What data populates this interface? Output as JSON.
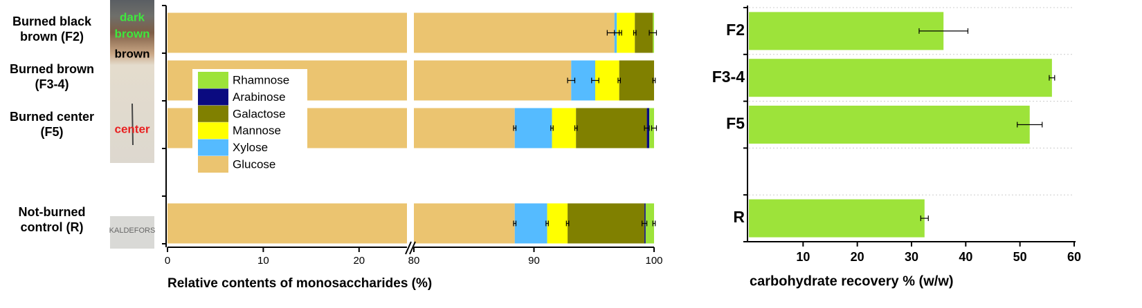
{
  "chart_data": [
    {
      "type": "stacked_bar",
      "orientation": "horizontal",
      "categories": [
        "Burned black brown (F2)",
        "Burned brown (F3-4)",
        "Burned center (F5)",
        null,
        "Not-burned control (R)"
      ],
      "series": [
        {
          "name": "Glucose",
          "color": "#ebc470",
          "values": [
            96.7,
            93.1,
            88.4,
            null,
            88.4
          ],
          "errors": [
            0.6,
            0.3,
            0.1,
            null,
            0.1
          ]
        },
        {
          "name": "Xylose",
          "color": "#55bbff",
          "values": [
            0.2,
            2.0,
            3.1,
            null,
            2.7
          ],
          "errors": [
            0.2,
            0.3,
            0.1,
            null,
            0.1
          ]
        },
        {
          "name": "Mannose",
          "color": "#ffff00",
          "values": [
            1.5,
            2.0,
            2.0,
            null,
            1.7
          ],
          "errors": [
            0.1,
            0.1,
            0.1,
            null,
            0.1
          ]
        },
        {
          "name": "Galactose",
          "color": "#808000",
          "values": [
            1.5,
            2.9,
            5.9,
            null,
            6.4
          ],
          "errors": [
            0.3,
            0.1,
            0.2,
            null,
            0.2
          ]
        },
        {
          "name": "Arabinose",
          "color": "#0a0a80",
          "values": [
            0.0,
            0.0,
            0.2,
            null,
            0.1
          ],
          "errors": [
            null,
            null,
            null,
            null,
            null
          ]
        },
        {
          "name": "Rhamnose",
          "color": "#9de33a",
          "values": [
            0.1,
            0.0,
            0.4,
            null,
            0.7
          ],
          "errors": [
            null,
            null,
            0.2,
            null,
            0.1
          ]
        }
      ],
      "xlim": [
        0,
        100
      ],
      "xbreak": [
        25,
        80
      ],
      "xticks": [
        0,
        10,
        20,
        80,
        90,
        100
      ],
      "xlabel": "Relative contents of monosaccharides (%)",
      "legend": "upper left"
    },
    {
      "type": "bar",
      "orientation": "horizontal",
      "categories": [
        "F2",
        "F3-4",
        "F5",
        null,
        "R"
      ],
      "values": [
        35.9,
        55.9,
        51.8,
        null,
        32.4
      ],
      "errors": [
        4.5,
        0.5,
        2.3,
        null,
        0.7
      ],
      "color": "#9de33a",
      "xlim": [
        0,
        60
      ],
      "xticks": [
        10,
        20,
        30,
        40,
        50,
        60
      ],
      "xlabel": "carbohydrate recovery % (w/w)",
      "grid": true
    }
  ],
  "photo_labels": [
    "dark",
    "brown",
    "brown",
    "center",
    "KALDEFORS"
  ]
}
